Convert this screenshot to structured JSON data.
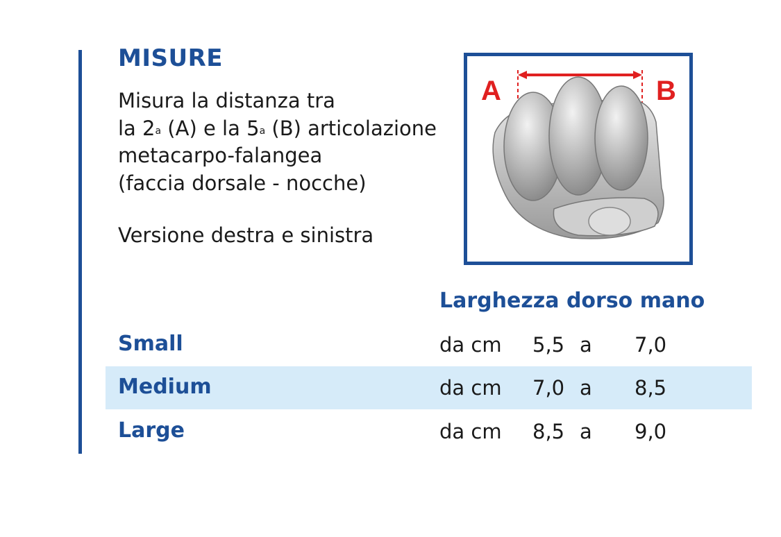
{
  "title": "MISURE",
  "description": {
    "line1": "Misura la distanza tra",
    "line2_pre": "la 2",
    "line2_sup1": "a",
    "line2_mid": " (A) e la 5",
    "line2_sup2": "a",
    "line2_post": " (B) articolazione",
    "line3": "metacarpo-falangea",
    "line4": "(faccia dorsale - nocche)"
  },
  "version": "Versione destra e sinistra",
  "image": {
    "label_a": "A",
    "label_b": "B",
    "frame_color": "#1d4f97",
    "marker_color": "#e02020"
  },
  "table": {
    "header": "Larghezza dorso mano",
    "rows": [
      {
        "size": "Small",
        "from_label": "da cm",
        "from": "5,5",
        "to_label": "a",
        "to": "7,0"
      },
      {
        "size": "Medium",
        "from_label": "da cm",
        "from": "7,0",
        "to_label": "a",
        "to": "8,5"
      },
      {
        "size": "Large",
        "from_label": "da cm",
        "from": "8,5",
        "to_label": "a",
        "to": "9,0"
      }
    ]
  },
  "colors": {
    "accent": "#1d4f97",
    "row_highlight": "#d6ebf9",
    "text": "#1a1a1a"
  }
}
